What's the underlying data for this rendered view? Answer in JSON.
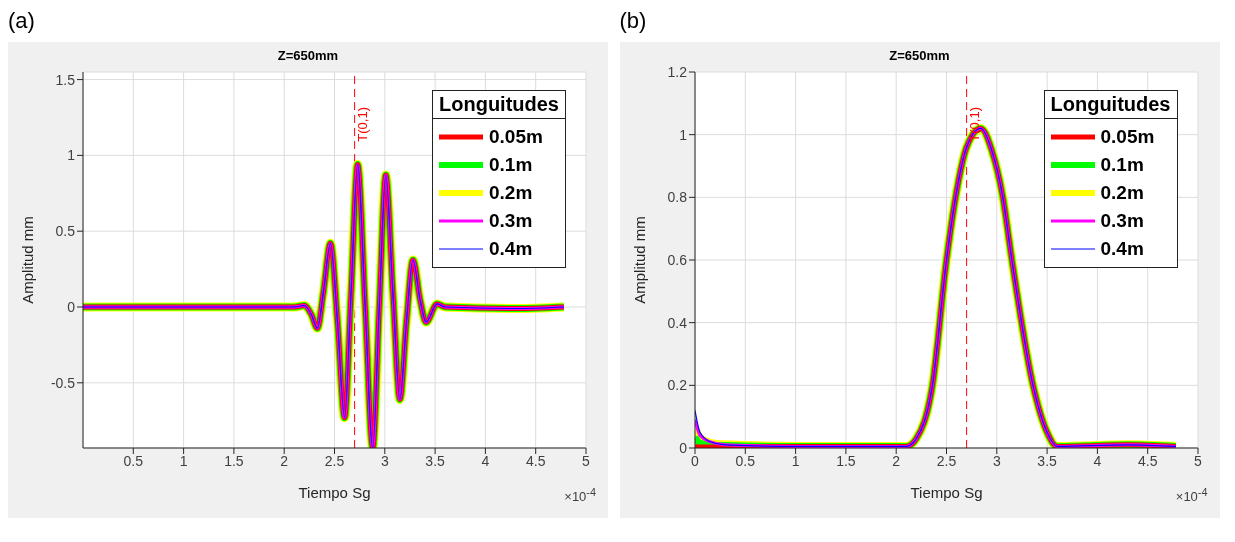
{
  "chart_data": [
    {
      "type": "line",
      "title": "Z=650mm",
      "xlabel": "Tiempo Sg",
      "ylabel": "Amplitud mm",
      "legend_title": "Longuitudes",
      "legend": "top right",
      "grid": true,
      "annotations": [
        "(a)",
        "×10$^{-4}$"
      ],
      "x": [
        0,
        2.1,
        2.2,
        2.27,
        2.33,
        2.39,
        2.46,
        2.53,
        2.6,
        2.665,
        2.73,
        2.805,
        2.88,
        2.945,
        3.01,
        3.08,
        3.15,
        3.215,
        3.28,
        3.35,
        3.41,
        3.52,
        3.6,
        4.3,
        4.78
      ],
      "xlim": [
        0,
        5
      ],
      "xticks": [
        0.5,
        1,
        1.5,
        2,
        2.5,
        3,
        3.5,
        4,
        4.5,
        5
      ],
      "ylim": [
        -0.93,
        1.55
      ],
      "yticks": [
        -0.5,
        0,
        0.5,
        1,
        1.5
      ],
      "ref_lines": [
        {
          "axis": "x",
          "value": 2.7,
          "label": "T(0,1)",
          "color": "#ff0000",
          "line_style": "dashed"
        }
      ],
      "series": [
        {
          "name": "0.05m",
          "color": "#ff0000",
          "values": [
            0,
            0,
            0.01,
            -0.05,
            -0.14,
            0.1,
            0.42,
            -0.1,
            -0.73,
            0.1,
            0.94,
            0,
            -0.93,
            0,
            0.87,
            0.1,
            -0.61,
            -0.1,
            0.31,
            0.05,
            -0.1,
            0.02,
            0,
            -0.01,
            0
          ]
        },
        {
          "name": "0.1m",
          "color": "#00ff00",
          "values": [
            0,
            0,
            0.01,
            -0.05,
            -0.14,
            0.1,
            0.42,
            -0.1,
            -0.73,
            0.1,
            0.94,
            0,
            -0.93,
            0,
            0.87,
            0.1,
            -0.61,
            -0.1,
            0.31,
            0.05,
            -0.1,
            0.02,
            0,
            -0.01,
            0
          ]
        },
        {
          "name": "0.2m",
          "color": "#ffff00",
          "values": [
            0,
            0,
            0.01,
            -0.05,
            -0.14,
            0.1,
            0.42,
            -0.1,
            -0.73,
            0.1,
            0.94,
            0,
            -0.93,
            0,
            0.87,
            0.1,
            -0.61,
            -0.1,
            0.31,
            0.05,
            -0.1,
            0.02,
            0,
            -0.01,
            0
          ]
        },
        {
          "name": "0.3m",
          "color": "#ff00ff",
          "values": [
            0,
            0,
            0.01,
            -0.05,
            -0.14,
            0.1,
            0.42,
            -0.1,
            -0.73,
            0.1,
            0.94,
            0,
            -0.93,
            0,
            0.87,
            0.1,
            -0.61,
            -0.1,
            0.31,
            0.05,
            -0.1,
            0.02,
            0,
            -0.01,
            0
          ]
        },
        {
          "name": "0.4m",
          "color": "#0000ff",
          "values": [
            0,
            0,
            0.01,
            -0.05,
            -0.14,
            0.1,
            0.42,
            -0.1,
            -0.73,
            0.1,
            0.94,
            0,
            -0.93,
            0,
            0.87,
            0.1,
            -0.61,
            -0.1,
            0.31,
            0.05,
            -0.1,
            0.02,
            0,
            -0.01,
            0
          ]
        }
      ]
    },
    {
      "type": "line",
      "title": "Z=650mm",
      "xlabel": "Tiempo Sg",
      "ylabel": "Amplitud mm",
      "legend_title": "Longuitudes",
      "legend": "top right",
      "grid": true,
      "annotations": [
        "(b)",
        "×10$^{-4}$"
      ],
      "x": [
        0,
        0.05,
        0.15,
        0.3,
        1,
        2.1,
        2.2,
        2.36,
        2.5,
        2.59,
        2.7,
        2.84,
        2.95,
        3.06,
        3.15,
        3.36,
        3.5,
        3.6,
        4.3,
        4.78
      ],
      "xlim": [
        0,
        5
      ],
      "xticks": [
        0,
        0.5,
        1,
        1.5,
        2,
        2.5,
        3,
        3.5,
        4,
        4.5,
        5
      ],
      "ylim": [
        0,
        1.2
      ],
      "yticks": [
        0,
        0.2,
        0.4,
        0.6,
        0.8,
        1,
        1.2
      ],
      "ref_lines": [
        {
          "axis": "x",
          "value": 2.7,
          "label": "T(0,1)",
          "color": "#ff0000",
          "line_style": "dashed"
        }
      ],
      "series": [
        {
          "name": "0.05m",
          "color": "#ff0000",
          "values": [
            0.005,
            0.003,
            0.003,
            0.005,
            0.005,
            0.005,
            0.03,
            0.2,
            0.6,
            0.8,
            0.96,
            1.02,
            0.95,
            0.8,
            0.6,
            0.2,
            0.05,
            0.005,
            0.01,
            0.005
          ]
        },
        {
          "name": "0.1m",
          "color": "#00ff00",
          "values": [
            0.035,
            0.015,
            0.01,
            0.008,
            0.005,
            0.005,
            0.03,
            0.2,
            0.6,
            0.8,
            0.96,
            1.02,
            0.95,
            0.8,
            0.6,
            0.2,
            0.05,
            0.005,
            0.01,
            0.005
          ]
        },
        {
          "name": "0.2m",
          "color": "#ffff00",
          "values": [
            0.06,
            0.03,
            0.015,
            0.01,
            0.005,
            0.005,
            0.03,
            0.2,
            0.6,
            0.8,
            0.96,
            1.02,
            0.95,
            0.8,
            0.6,
            0.2,
            0.05,
            0.005,
            0.01,
            0.005
          ]
        },
        {
          "name": "0.3m",
          "color": "#ff00ff",
          "values": [
            0.09,
            0.04,
            0.02,
            0.01,
            0.005,
            0.005,
            0.03,
            0.2,
            0.6,
            0.8,
            0.96,
            1.02,
            0.95,
            0.8,
            0.6,
            0.2,
            0.05,
            0.005,
            0.01,
            0.005
          ]
        },
        {
          "name": "0.4m",
          "color": "#0000ff",
          "values": [
            0.12,
            0.05,
            0.02,
            0.01,
            0.005,
            0.005,
            0.03,
            0.2,
            0.6,
            0.8,
            0.96,
            1.02,
            0.95,
            0.8,
            0.6,
            0.2,
            0.05,
            0.005,
            0.01,
            0.005
          ]
        }
      ]
    }
  ]
}
